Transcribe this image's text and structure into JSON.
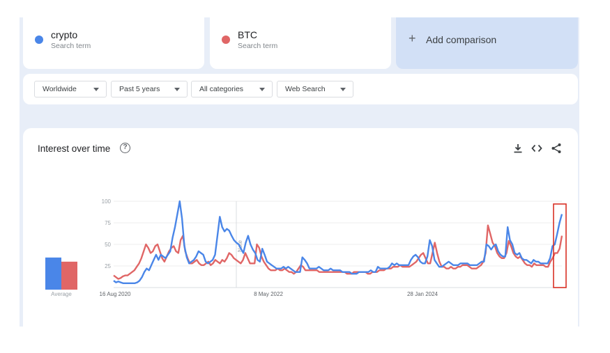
{
  "search_terms": [
    {
      "label": "crypto",
      "sublabel": "Search term",
      "color": "#4a86e8"
    },
    {
      "label": "BTC",
      "sublabel": "Search term",
      "color": "#e06666"
    }
  ],
  "add_comparison": {
    "icon": "+",
    "label": "Add comparison"
  },
  "filters": [
    {
      "label": "Worldwide"
    },
    {
      "label": "Past 5 years"
    },
    {
      "label": "All categories"
    },
    {
      "label": "Web Search"
    }
  ],
  "panel": {
    "title": "Interest over time",
    "help_icon": "?"
  },
  "toolbar": {
    "download_icon": "download-icon",
    "embed_icon": "embed-icon",
    "share_icon": "share-icon"
  },
  "note_label": "Note",
  "average_label": "Average",
  "highlight_color": "#d93025",
  "chart_data": {
    "type": "line",
    "y_ticks": [
      "100",
      "75",
      "50",
      "25"
    ],
    "ylim": [
      0,
      100
    ],
    "x_tick_labels": [
      "16 Aug 2020",
      "8 May 2022",
      "28 Jan 2024"
    ],
    "average": {
      "crypto": 31,
      "BTC": 27
    },
    "series": [
      {
        "name": "crypto",
        "color": "#4a86e8",
        "values": [
          8,
          6,
          7,
          6,
          5,
          5,
          5,
          5,
          5,
          5,
          6,
          8,
          12,
          18,
          22,
          20,
          26,
          32,
          38,
          32,
          38,
          36,
          34,
          38,
          42,
          58,
          70,
          85,
          100,
          80,
          48,
          35,
          28,
          30,
          32,
          36,
          42,
          40,
          38,
          30,
          28,
          30,
          32,
          38,
          60,
          82,
          70,
          65,
          68,
          66,
          60,
          55,
          52,
          50,
          45,
          40,
          52,
          60,
          50,
          44,
          40,
          32,
          30,
          45,
          38,
          30,
          28,
          26,
          24,
          22,
          22,
          22,
          24,
          22,
          24,
          22,
          20,
          18,
          18,
          18,
          35,
          32,
          28,
          22,
          22,
          22,
          22,
          24,
          22,
          20,
          20,
          20,
          22,
          20,
          20,
          20,
          20,
          18,
          18,
          18,
          18,
          16,
          16,
          16,
          18,
          18,
          18,
          18,
          18,
          20,
          18,
          18,
          24,
          22,
          22,
          22,
          22,
          24,
          28,
          26,
          28,
          26,
          26,
          26,
          26,
          26,
          32,
          36,
          38,
          35,
          30,
          28,
          28,
          36,
          55,
          48,
          32,
          28,
          24,
          24,
          26,
          28,
          30,
          28,
          26,
          26,
          26,
          28,
          28,
          28,
          28,
          26,
          26,
          26,
          26,
          28,
          30,
          30,
          50,
          48,
          44,
          48,
          50,
          42,
          38,
          36,
          36,
          70,
          55,
          50,
          40,
          38,
          40,
          34,
          32,
          32,
          30,
          28,
          32,
          30,
          30,
          28,
          28,
          28,
          28,
          34,
          48,
          50,
          62,
          75,
          85
        ]
      },
      {
        "name": "BTC",
        "color": "#e06666",
        "values": [
          14,
          12,
          10,
          11,
          13,
          14,
          14,
          16,
          18,
          20,
          24,
          28,
          34,
          42,
          50,
          46,
          40,
          42,
          48,
          50,
          42,
          34,
          30,
          36,
          42,
          46,
          48,
          42,
          40,
          55,
          60,
          42,
          34,
          28,
          28,
          30,
          32,
          28,
          26,
          26,
          28,
          30,
          26,
          28,
          32,
          30,
          28,
          32,
          30,
          34,
          40,
          38,
          34,
          32,
          30,
          28,
          32,
          40,
          34,
          28,
          28,
          28,
          50,
          46,
          36,
          30,
          26,
          22,
          20,
          20,
          20,
          22,
          20,
          20,
          22,
          20,
          18,
          18,
          16,
          18,
          22,
          26,
          24,
          20,
          20,
          20,
          20,
          20,
          20,
          18,
          18,
          18,
          18,
          18,
          18,
          18,
          18,
          18,
          18,
          18,
          18,
          16,
          16,
          16,
          18,
          18,
          18,
          18,
          18,
          18,
          16,
          16,
          18,
          18,
          18,
          20,
          20,
          20,
          22,
          22,
          22,
          24,
          24,
          24,
          26,
          24,
          24,
          24,
          24,
          26,
          28,
          30,
          34,
          38,
          40,
          34,
          28,
          28,
          40,
          52,
          40,
          30,
          24,
          24,
          22,
          22,
          24,
          22,
          22,
          24,
          24,
          26,
          26,
          26,
          24,
          22,
          22,
          22,
          24,
          26,
          30,
          40,
          72,
          62,
          52,
          48,
          40,
          36,
          34,
          34,
          40,
          54,
          48,
          40,
          36,
          34,
          36,
          32,
          28,
          26,
          26,
          24,
          28,
          26,
          26,
          26,
          26,
          24,
          24,
          30,
          34,
          40,
          40,
          45,
          60
        ]
      }
    ]
  }
}
